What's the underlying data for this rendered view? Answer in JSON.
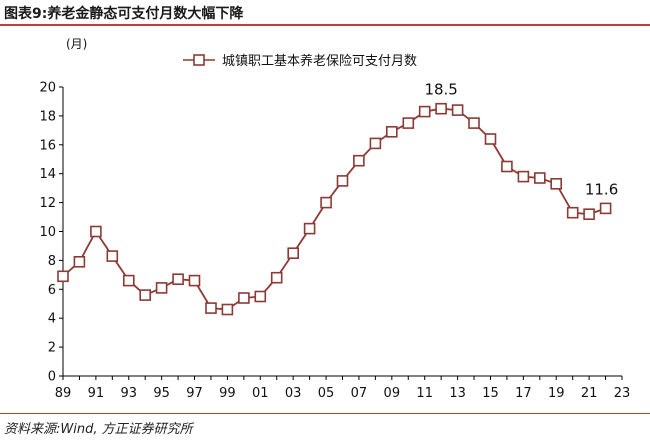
{
  "header": {
    "figure_title": "图表9:养老金静态可支付月数大幅下降"
  },
  "footer": {
    "source": "资料来源:Wind, 方正证券研究所"
  },
  "colors": {
    "series": "#8b3a35",
    "accent_rule": "#c44036",
    "axis": "#000000"
  },
  "chart_data": {
    "type": "line",
    "unit_label": "(月)",
    "ylim": [
      0,
      20
    ],
    "yticks": [
      0,
      2,
      4,
      6,
      8,
      10,
      12,
      14,
      16,
      18,
      20
    ],
    "xlim": [
      1989,
      2023
    ],
    "xtick_labels": [
      "89",
      "91",
      "93",
      "95",
      "97",
      "99",
      "01",
      "03",
      "05",
      "07",
      "09",
      "11",
      "13",
      "15",
      "17",
      "19",
      "21",
      "23"
    ],
    "legend": {
      "position": "top-center",
      "entries": [
        "城镇职工基本养老保险可支付月数"
      ]
    },
    "grid": false,
    "series": [
      {
        "name": "城镇职工基本养老保险可支付月数",
        "x": [
          1989,
          1990,
          1991,
          1992,
          1993,
          1994,
          1995,
          1996,
          1997,
          1998,
          1999,
          2000,
          2001,
          2002,
          2003,
          2004,
          2005,
          2006,
          2007,
          2008,
          2009,
          2010,
          2011,
          2012,
          2013,
          2014,
          2015,
          2016,
          2017,
          2018,
          2019,
          2020,
          2021,
          2022
        ],
        "values": [
          6.9,
          7.9,
          10.0,
          8.3,
          6.6,
          5.6,
          6.1,
          6.7,
          6.6,
          4.7,
          4.6,
          5.4,
          5.5,
          6.8,
          8.5,
          10.2,
          12.0,
          13.5,
          14.9,
          16.1,
          16.9,
          17.5,
          18.3,
          18.5,
          18.4,
          17.5,
          16.4,
          14.5,
          13.8,
          13.7,
          13.3,
          11.3,
          11.2,
          11.6
        ]
      }
    ],
    "annotations": [
      {
        "text": "18.5",
        "x": 2012,
        "y": 18.5
      },
      {
        "text": "11.6",
        "x": 2022,
        "y": 11.6
      }
    ]
  }
}
